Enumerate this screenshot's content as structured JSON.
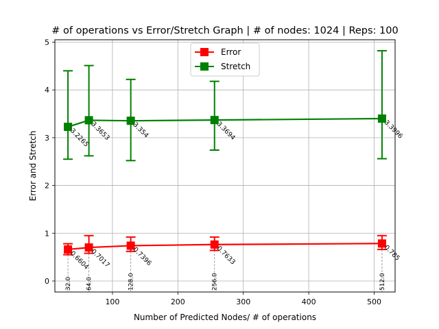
{
  "chart_data": {
    "type": "line",
    "title": "# of operations vs Error/Stretch Graph | # of nodes: 1024 | Reps: 100",
    "xlabel": "Number of Predicted Nodes/ # of operations",
    "ylabel": "Error and Stretch",
    "xlim": [
      12.0,
      532.0
    ],
    "ylim": [
      -0.23,
      5.05
    ],
    "grid": true,
    "legend_position": "upper center",
    "x": [
      32,
      64,
      128,
      256,
      512
    ],
    "x_marker_labels": [
      "32.0",
      "64.0",
      "128.0",
      "256.0",
      "512.0"
    ],
    "x_ticks": [
      100,
      200,
      300,
      400,
      500
    ],
    "x_tick_labels": [
      "100",
      "200",
      "300",
      "400",
      "500"
    ],
    "y_ticks": [
      0,
      1,
      2,
      3,
      4,
      5
    ],
    "y_tick_labels": [
      "0",
      "1",
      "2",
      "3",
      "4",
      "5"
    ],
    "series": [
      {
        "name": "Error",
        "color": "#ff0000",
        "marker": "square",
        "values": [
          0.6604,
          0.7017,
          0.7396,
          0.7633,
          0.785
        ],
        "value_labels": [
          "0.6604",
          "0.7017",
          "0.7396",
          "0.7633",
          "0.785"
        ],
        "err_low": [
          0.55,
          0.58,
          0.62,
          0.64,
          0.66
        ],
        "err_high": [
          0.78,
          0.95,
          0.92,
          0.92,
          0.95
        ]
      },
      {
        "name": "Stretch",
        "color": "#008000",
        "marker": "square",
        "values": [
          3.2265,
          3.3653,
          3.354,
          3.3694,
          3.3996
        ],
        "value_labels": [
          "3.2265",
          "3.3653",
          "3.354",
          "3.3694",
          "3.3996"
        ],
        "err_low": [
          2.55,
          2.62,
          2.52,
          2.74,
          2.56
        ],
        "err_high": [
          4.4,
          4.51,
          4.22,
          4.18,
          4.82
        ]
      }
    ]
  }
}
